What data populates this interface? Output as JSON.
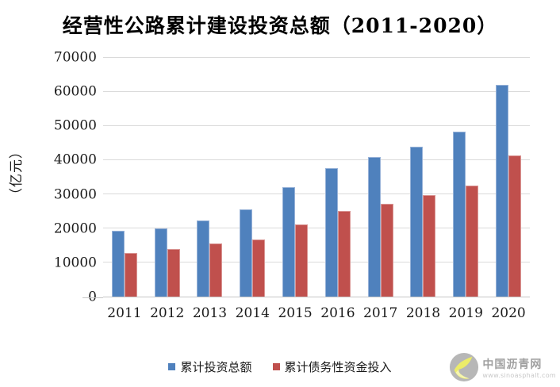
{
  "chart_data": {
    "type": "bar",
    "title": "经营性公路累计建设投资总额（2011-2020）",
    "categories": [
      "2011",
      "2012",
      "2013",
      "2014",
      "2015",
      "2016",
      "2017",
      "2018",
      "2019",
      "2020"
    ],
    "series": [
      {
        "name": "累计投资总额",
        "color": "#4F81BD",
        "values": [
          19200,
          20000,
          22300,
          25500,
          32000,
          37700,
          40900,
          44000,
          48400,
          62200
        ]
      },
      {
        "name": "累计债务性资金投入",
        "color": "#C0504D",
        "values": [
          12900,
          13900,
          15700,
          16800,
          21100,
          25100,
          27200,
          29800,
          32500,
          41500
        ]
      }
    ],
    "xlabel": "",
    "ylabel": "（亿元）",
    "ylim": [
      0,
      70000
    ],
    "yticks": [
      0,
      10000,
      20000,
      30000,
      40000,
      50000,
      60000,
      70000
    ],
    "grid": true,
    "legend_position": "bottom",
    "gridline_color": "#DADADA",
    "axis_line_color": "#C6C6C6"
  },
  "legend": {
    "items": [
      {
        "label": "累计投资总额",
        "color": "#4F81BD"
      },
      {
        "label": "累计债务性资金投入",
        "color": "#C0504D"
      }
    ]
  },
  "watermark": {
    "site_name": "中国沥青网",
    "site_url": "www.sinoasphalt.com"
  }
}
